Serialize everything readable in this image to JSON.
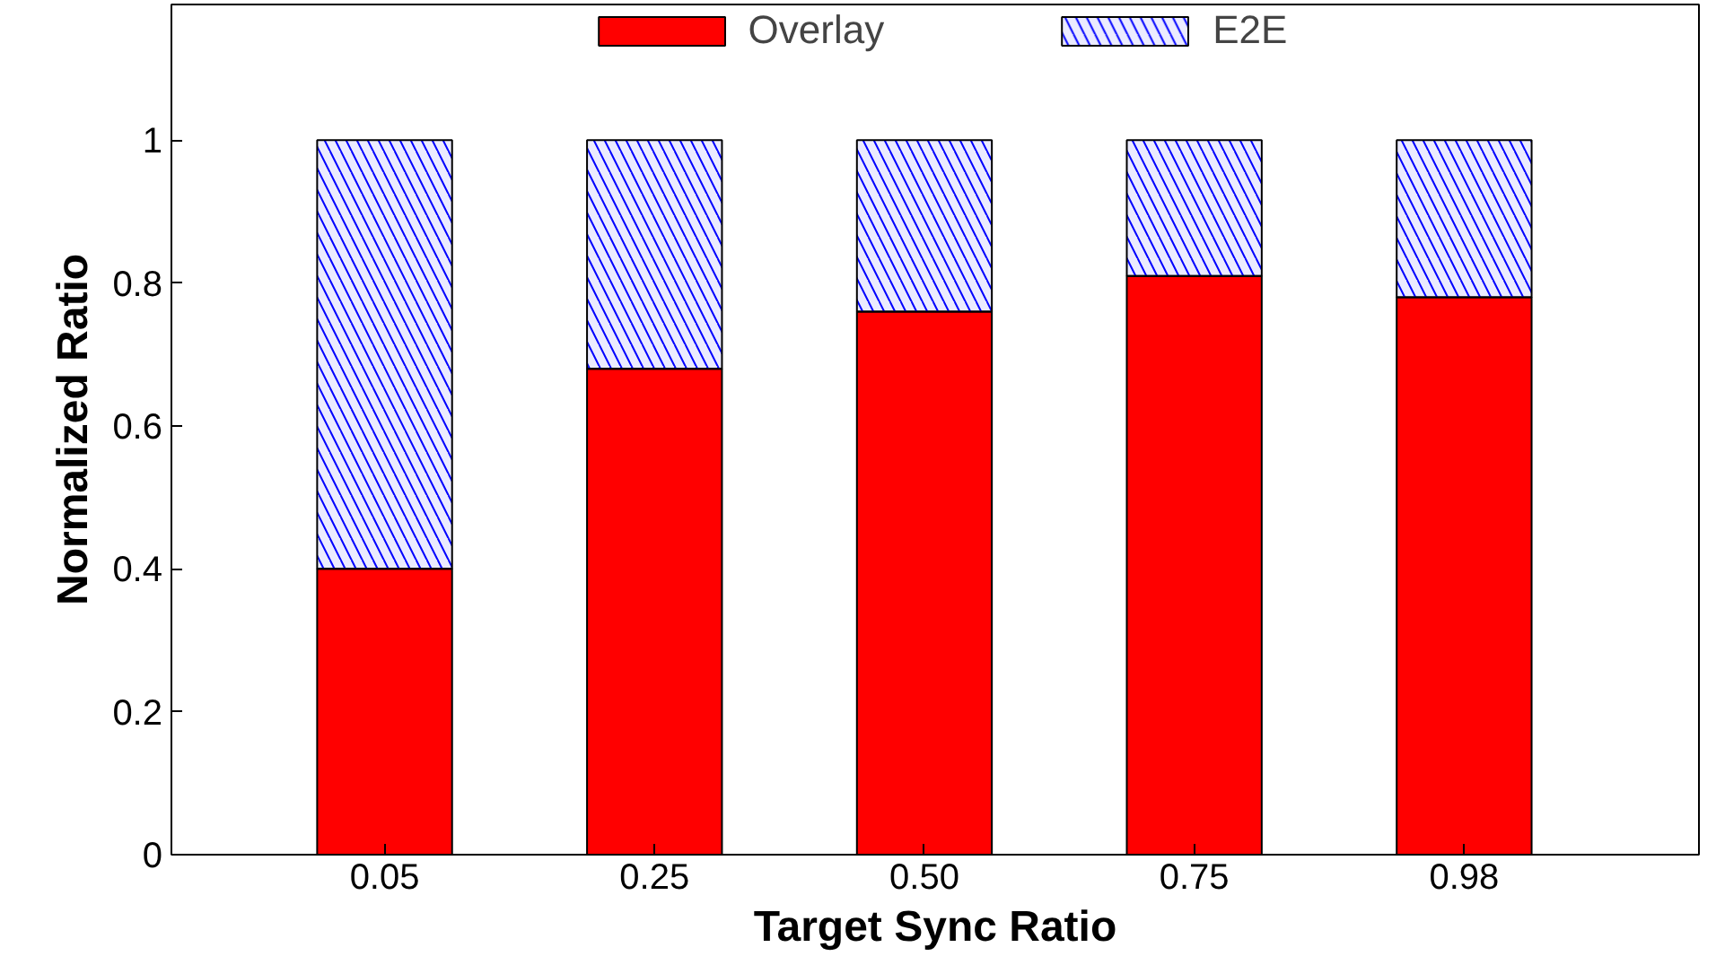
{
  "chart_data": {
    "type": "bar",
    "stacked": true,
    "xlabel": "Target Sync Ratio",
    "ylabel": "Normalized Ratio",
    "categories": [
      "0.05",
      "0.25",
      "0.50",
      "0.75",
      "0.98"
    ],
    "series": [
      {
        "name": "Overlay",
        "color": "#ff0000",
        "values": [
          0.4,
          0.68,
          0.76,
          0.81,
          0.78
        ]
      },
      {
        "name": "E2E",
        "color": "#0000ff",
        "values": [
          0.6,
          0.32,
          0.24,
          0.19,
          0.22
        ]
      }
    ],
    "ylim": [
      0,
      1.19
    ],
    "yticks": [
      0,
      0.2,
      0.4,
      0.6,
      0.8,
      1
    ],
    "grid": false,
    "legend": "top"
  }
}
